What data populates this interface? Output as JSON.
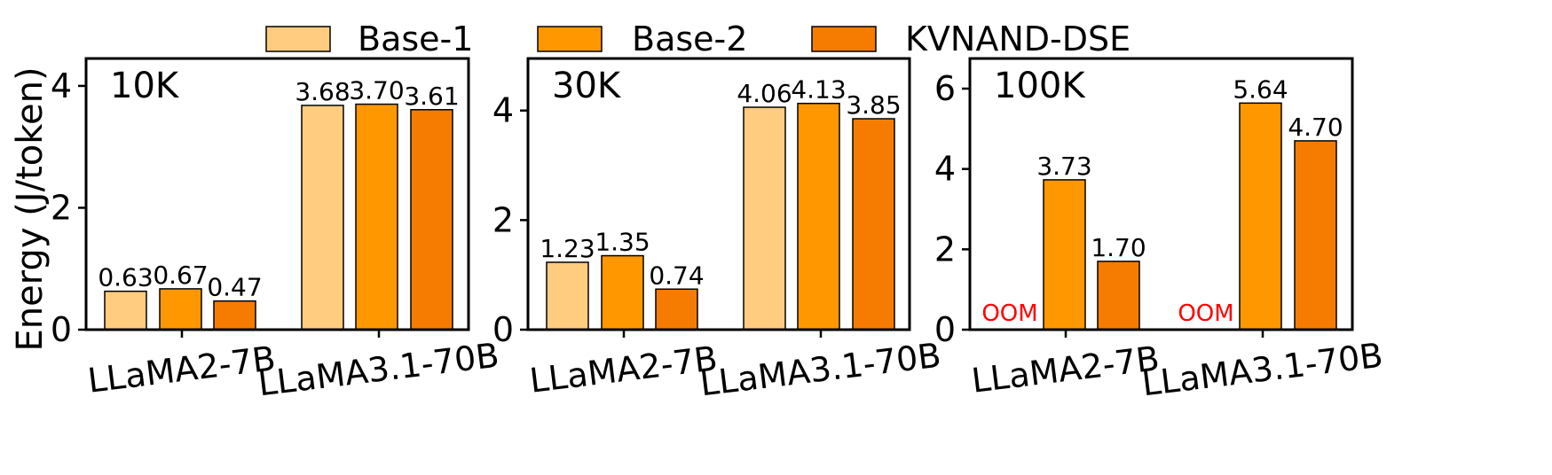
{
  "legend": [
    {
      "name": "Base-1",
      "color": "#ffcc80"
    },
    {
      "name": "Base-2",
      "color": "#ff9800"
    },
    {
      "name": "KVNAND-DSE",
      "color": "#f57c00"
    }
  ],
  "ylabel": "Energy (J/token)",
  "oom_text": "OOM",
  "chart_data": [
    {
      "type": "bar",
      "panel_label": "10K",
      "categories": [
        "LLaMA2-7B",
        "LLaMA3.1-70B"
      ],
      "ylim": [
        0,
        4.45
      ],
      "yticks": [
        0,
        2,
        4
      ],
      "series": [
        {
          "name": "Base-1",
          "values": [
            0.63,
            3.68
          ]
        },
        {
          "name": "Base-2",
          "values": [
            0.67,
            3.7
          ]
        },
        {
          "name": "KVNAND-DSE",
          "values": [
            0.47,
            3.61
          ]
        }
      ]
    },
    {
      "type": "bar",
      "panel_label": "30K",
      "categories": [
        "LLaMA2-7B",
        "LLaMA3.1-70B"
      ],
      "ylim": [
        0,
        4.95
      ],
      "yticks": [
        0,
        2,
        4
      ],
      "series": [
        {
          "name": "Base-1",
          "values": [
            1.23,
            4.06
          ]
        },
        {
          "name": "Base-2",
          "values": [
            1.35,
            4.13
          ]
        },
        {
          "name": "KVNAND-DSE",
          "values": [
            0.74,
            3.85
          ]
        }
      ]
    },
    {
      "type": "bar",
      "panel_label": "100K",
      "categories": [
        "LLaMA2-7B",
        "LLaMA3.1-70B"
      ],
      "ylim": [
        0,
        6.75
      ],
      "yticks": [
        0,
        2,
        4,
        6
      ],
      "series": [
        {
          "name": "Base-1",
          "values": [
            null,
            null
          ]
        },
        {
          "name": "Base-2",
          "values": [
            3.73,
            5.64
          ]
        },
        {
          "name": "KVNAND-DSE",
          "values": [
            1.7,
            4.7
          ]
        }
      ]
    }
  ]
}
